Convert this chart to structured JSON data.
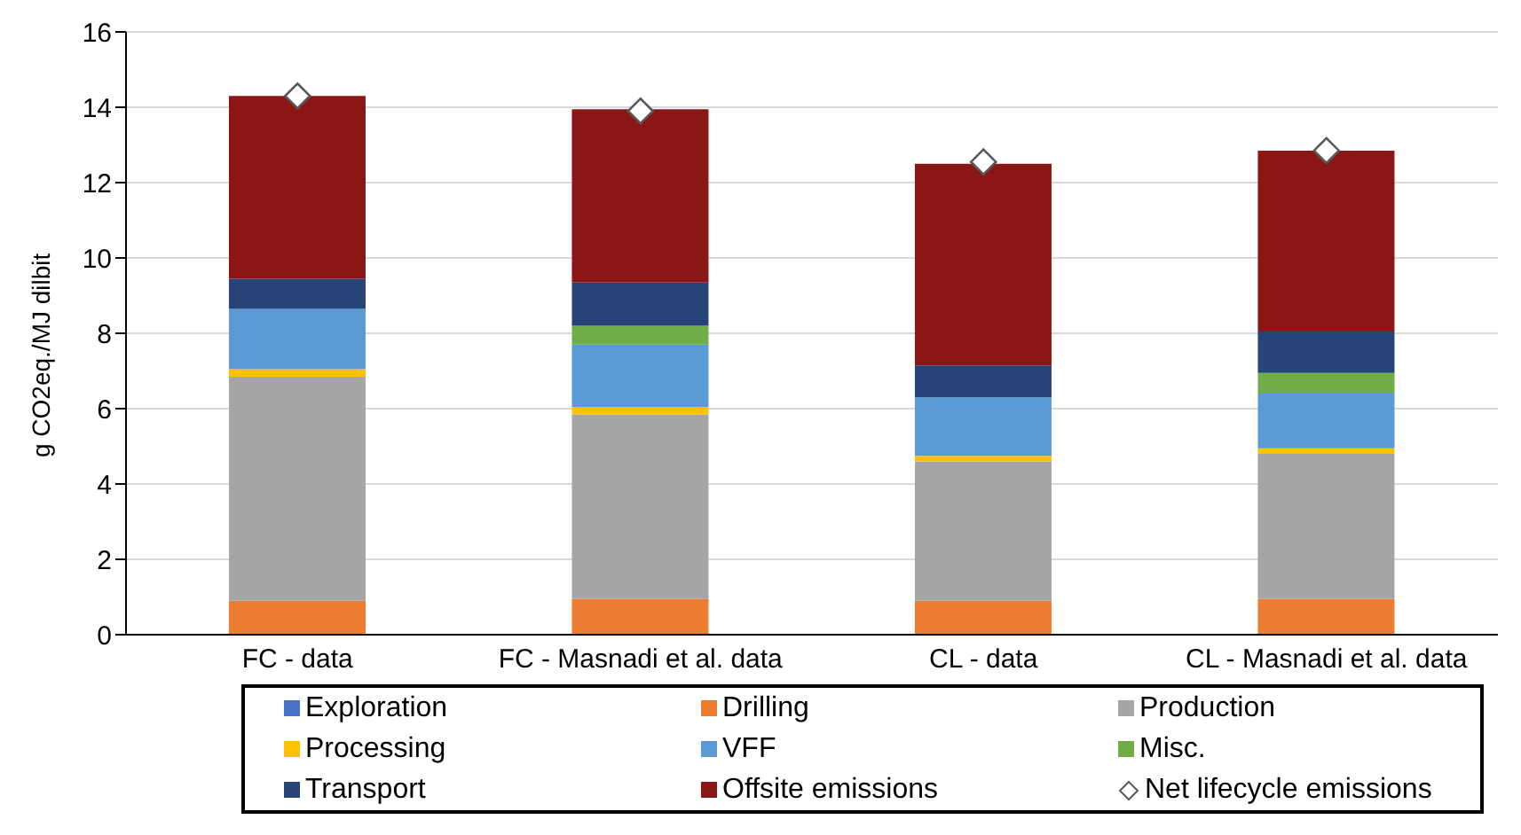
{
  "chart_data": {
    "type": "bar",
    "stacked": true,
    "ylabel": "g CO2eq./MJ dilbit",
    "categories": [
      "FC - data",
      "FC - Masnadi et al. data",
      "CL - data",
      "CL - Masnadi et al. data"
    ],
    "series": [
      {
        "name": "Exploration",
        "color": "#4472c4",
        "values": [
          0,
          0,
          0,
          0
        ]
      },
      {
        "name": "Drilling",
        "color": "#ed7d31",
        "values": [
          0.9,
          0.95,
          0.9,
          0.95
        ]
      },
      {
        "name": "Production",
        "color": "#a5a5a5",
        "values": [
          5.95,
          4.9,
          3.7,
          3.85
        ]
      },
      {
        "name": "Processing",
        "color": "#ffc000",
        "values": [
          0.2,
          0.2,
          0.15,
          0.15
        ]
      },
      {
        "name": "VFF",
        "color": "#5b9bd5",
        "values": [
          1.6,
          1.65,
          1.55,
          1.45
        ]
      },
      {
        "name": "Misc.",
        "color": "#70ad47",
        "values": [
          0,
          0.5,
          0,
          0.55
        ]
      },
      {
        "name": "Transport",
        "color": "#264478",
        "values": [
          0.8,
          1.15,
          0.85,
          1.1
        ]
      },
      {
        "name": "Offsite emissions",
        "color": "#8b1616",
        "values": [
          4.85,
          4.6,
          5.35,
          4.8
        ]
      },
      {
        "name": "Net lifecycle emissions",
        "type": "scatter",
        "marker": "diamond",
        "color": "#595959",
        "values": [
          14.3,
          13.9,
          12.55,
          12.85
        ]
      }
    ],
    "ylim": [
      0,
      16
    ],
    "yticks": [
      0,
      2,
      4,
      6,
      8,
      10,
      12,
      14,
      16
    ],
    "grid": "y",
    "legend": "bottom"
  }
}
